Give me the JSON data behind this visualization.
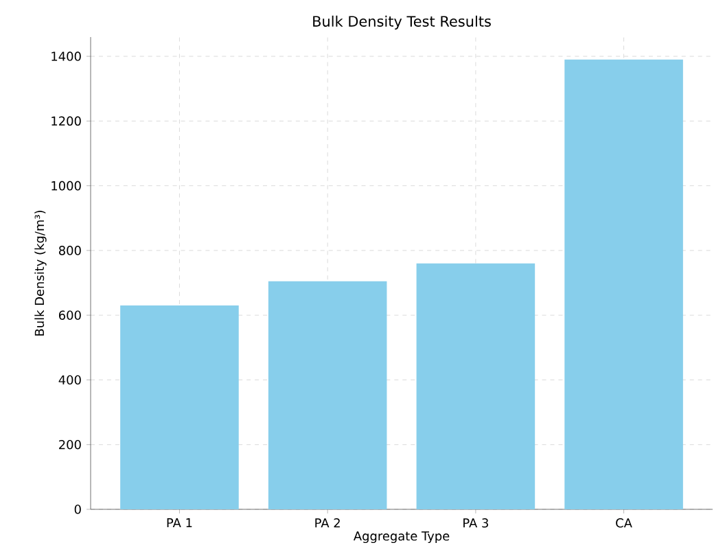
{
  "chart_data": {
    "type": "bar",
    "title": "Bulk Density Test Results",
    "xlabel": "Aggregate Type",
    "ylabel": "Bulk Density (kg/m³)",
    "categories": [
      "PA 1",
      "PA 2",
      "PA 3",
      "CA"
    ],
    "values": [
      630,
      705,
      760,
      1390
    ],
    "color": "#87ceeb",
    "ylim": [
      0,
      1459.5
    ],
    "yticks": [
      0,
      200,
      400,
      600,
      800,
      1000,
      1200,
      1400
    ],
    "grid": true
  }
}
